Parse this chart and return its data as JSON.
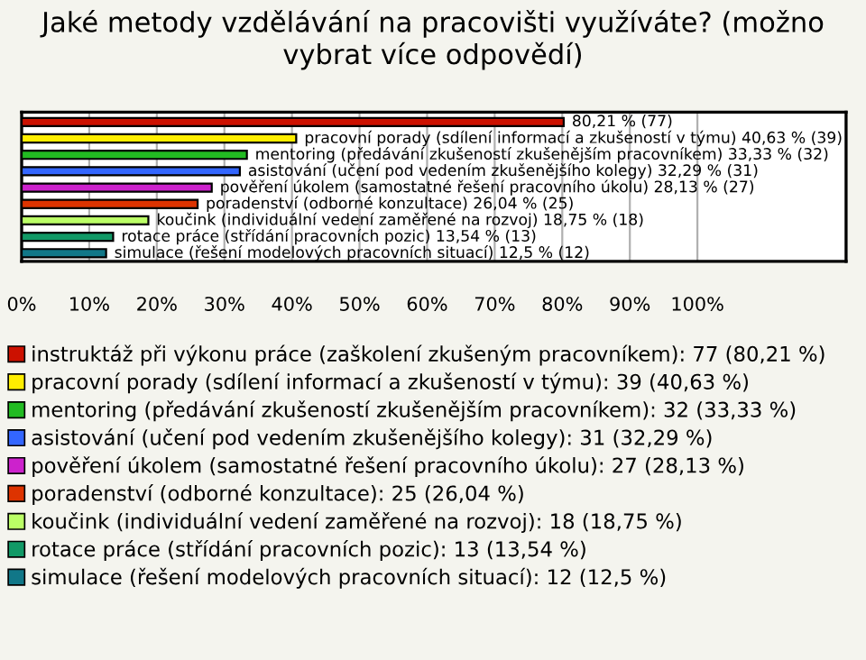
{
  "chart_data": {
    "type": "bar",
    "orientation": "horizontal",
    "title": "Jaké metody vzdělávání na pracovišti využíváte? (možno vybrat více odpovědí)",
    "categories": [
      null,
      null,
      null,
      null,
      null,
      null,
      null,
      null,
      null
    ],
    "xlim": [
      0,
      122
    ],
    "xticks": [
      {
        "value": 0,
        "label": "0%"
      },
      {
        "value": 10,
        "label": "10%"
      },
      {
        "value": 20,
        "label": "20%"
      },
      {
        "value": 30,
        "label": "30%"
      },
      {
        "value": 40,
        "label": "40%"
      },
      {
        "value": 50,
        "label": "50%"
      },
      {
        "value": 60,
        "label": "60%"
      },
      {
        "value": 70,
        "label": "70%"
      },
      {
        "value": 80,
        "label": "80%"
      },
      {
        "value": 90,
        "label": "90%"
      },
      {
        "value": 100,
        "label": "100%"
      }
    ],
    "grid": "x",
    "legend": "bottom",
    "series": [
      {
        "name": "instruktáž při výkonu práce (zaškolení zkušeným pracovníkem): 77 (80,21 %)",
        "color": "#cc1100",
        "values": [
          80.21,
          null,
          null,
          null,
          null,
          null,
          null,
          null,
          null
        ],
        "value_labels": [
          "80,21 % (77)",
          null,
          null,
          null,
          null,
          null,
          null,
          null,
          null
        ]
      },
      {
        "name": "pracovní porady (sdílení informací a zkušeností v týmu): 39 (40,63 %)",
        "color": "#ffee00",
        "values": [
          null,
          40.63,
          null,
          null,
          null,
          null,
          null,
          null,
          null
        ],
        "value_labels": [
          null,
          "pracovní porady (sdílení informací a zkušeností v týmu) 40,63 % (39)",
          null,
          null,
          null,
          null,
          null,
          null,
          null
        ]
      },
      {
        "name": "mentoring (předávání zkušeností zkušenějším pracovníkem): 32 (33,33 %)",
        "color": "#22bb22",
        "values": [
          null,
          null,
          33.33,
          null,
          null,
          null,
          null,
          null,
          null
        ],
        "value_labels": [
          null,
          null,
          "mentoring (předávání zkušeností zkušenějším pracovníkem) 33,33 % (32)",
          null,
          null,
          null,
          null,
          null,
          null
        ]
      },
      {
        "name": "asistování (učení pod vedením zkušenějšího kolegy): 31 (32,29 %)",
        "color": "#3366ff",
        "values": [
          null,
          null,
          null,
          32.29,
          null,
          null,
          null,
          null,
          null
        ],
        "value_labels": [
          null,
          null,
          null,
          "asistování (učení pod vedením zkušenějšího kolegy) 32,29 % (31)",
          null,
          null,
          null,
          null,
          null
        ]
      },
      {
        "name": "pověření úkolem (samostatné řešení pracovního úkolu): 27 (28,13 %)",
        "color": "#cc22cc",
        "values": [
          null,
          null,
          null,
          null,
          28.13,
          null,
          null,
          null,
          null
        ],
        "value_labels": [
          null,
          null,
          null,
          null,
          "pověření úkolem (samostatné řešení pracovního úkolu) 28,13 % (27)",
          null,
          null,
          null,
          null
        ]
      },
      {
        "name": "poradenství (odborné konzultace): 25 (26,04 %)",
        "color": "#dd3300",
        "values": [
          null,
          null,
          null,
          null,
          null,
          26.04,
          null,
          null,
          null
        ],
        "value_labels": [
          null,
          null,
          null,
          null,
          null,
          "poradenství (odborné konzultace) 26,04 % (25)",
          null,
          null,
          null
        ]
      },
      {
        "name": "koučink (individuální vedení zaměřené na rozvoj): 18 (18,75 %)",
        "color": "#bbff66",
        "values": [
          null,
          null,
          null,
          null,
          null,
          null,
          18.75,
          null,
          null
        ],
        "value_labels": [
          null,
          null,
          null,
          null,
          null,
          null,
          "koučink (individuální vedení zaměřené na rozvoj) 18,75 % (18)",
          null,
          null
        ]
      },
      {
        "name": "rotace práce (střídání pracovních pozic): 13 (13,54 %)",
        "color": "#119966",
        "values": [
          null,
          null,
          null,
          null,
          null,
          null,
          null,
          13.54,
          null
        ],
        "value_labels": [
          null,
          null,
          null,
          null,
          null,
          null,
          null,
          "rotace práce (střídání pracovních pozic) 13,54 % (13)",
          null
        ]
      },
      {
        "name": "simulace (řešení modelových pracovních situací): 12 (12,5 %)",
        "color": "#117788",
        "values": [
          null,
          null,
          null,
          null,
          null,
          null,
          null,
          null,
          12.5
        ],
        "value_labels": [
          null,
          null,
          null,
          null,
          null,
          null,
          null,
          null,
          "simulace (řešení modelových pracovních situací) 12,5 % (12)"
        ]
      }
    ]
  }
}
